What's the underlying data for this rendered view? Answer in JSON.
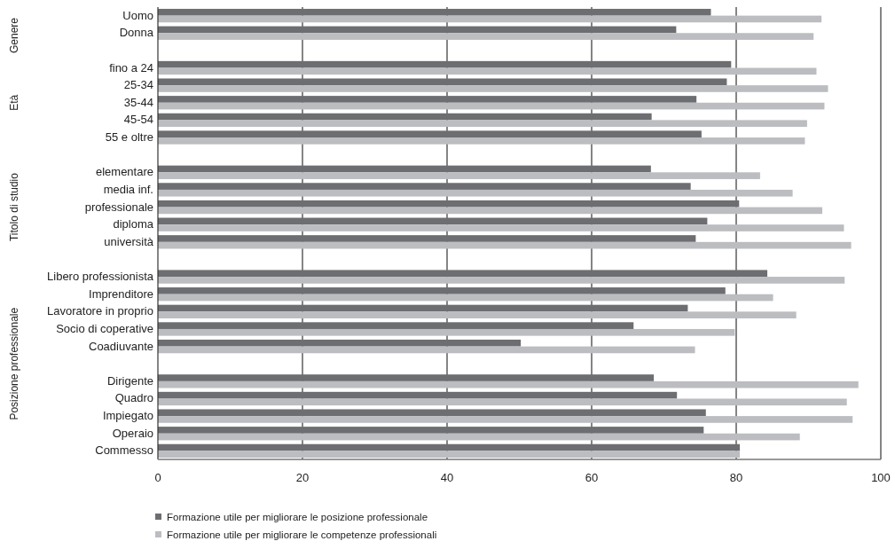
{
  "chart_data": {
    "type": "bar",
    "orientation": "horizontal",
    "categories": [
      "Uomo",
      "Donna",
      null,
      "fino a 24",
      "25-34",
      "35-44",
      "45-54",
      "55 e oltre",
      null,
      "elementare",
      "media inf.",
      "professionale",
      "diploma",
      "università",
      null,
      "Libero professionista",
      "Imprenditore",
      "Lavoratore in proprio",
      "Socio di coperative",
      "Coadiuvante",
      null,
      "Dirigente",
      "Quadro",
      "Impiegato",
      "Operaio",
      "Commesso"
    ],
    "series": [
      {
        "name": "Formazione utile per migliorare le posizione professionale",
        "color": "#6d6e71",
        "values": [
          76.5,
          71.7,
          null,
          79.3,
          78.7,
          74.5,
          68.3,
          75.2,
          null,
          68.2,
          73.7,
          80.4,
          76.0,
          74.4,
          null,
          84.3,
          78.5,
          73.3,
          65.8,
          50.2,
          null,
          68.6,
          71.8,
          75.8,
          75.5,
          80.5
        ]
      },
      {
        "name": "Formazione utile per migliorare le competenze professionali",
        "color": "#bcbdc0",
        "values": [
          91.8,
          90.7,
          null,
          91.1,
          92.7,
          92.2,
          89.8,
          89.5,
          null,
          83.3,
          87.8,
          91.9,
          94.9,
          95.9,
          null,
          95.0,
          85.1,
          88.3,
          79.8,
          74.3,
          null,
          96.9,
          95.3,
          96.1,
          88.8,
          80.5
        ]
      }
    ],
    "xlim": [
      0,
      100
    ],
    "xticks": [
      0,
      20,
      40,
      60,
      80,
      100
    ],
    "grid": "x",
    "legend": "bottom",
    "annotations": [
      "Genere",
      "Età",
      "Titolo di studio",
      "Posizione professionale"
    ]
  }
}
